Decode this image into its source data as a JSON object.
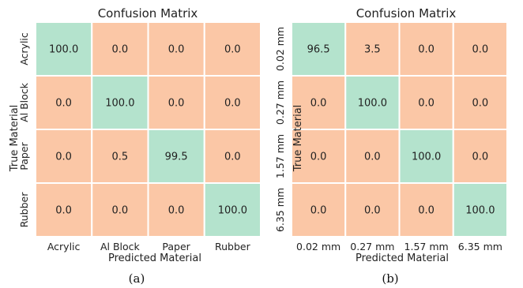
{
  "colors": {
    "diagonal": "#b4e3cd",
    "offdiag": "#fbc7a6",
    "grid": "#ffffff"
  },
  "chart_data": [
    {
      "type": "heatmap",
      "title": "Confusion Matrix",
      "panel_label": "(a)",
      "xlabel": "Predicted Material",
      "ylabel": "True Material",
      "x_categories": [
        "Acrylic",
        "Al Block",
        "Paper",
        "Rubber"
      ],
      "y_categories": [
        "Acrylic",
        "Al Block",
        "Paper",
        "Rubber"
      ],
      "values": [
        [
          100.0,
          0.0,
          0.0,
          0.0
        ],
        [
          0.0,
          100.0,
          0.0,
          0.0
        ],
        [
          0.0,
          0.5,
          99.5,
          0.0
        ],
        [
          0.0,
          0.0,
          0.0,
          100.0
        ]
      ]
    },
    {
      "type": "heatmap",
      "title": "Confusion Matrix",
      "panel_label": "(b)",
      "xlabel": "Predicted Material",
      "ylabel": "True Material",
      "x_categories": [
        "0.02 mm",
        "0.27 mm",
        "1.57 mm",
        "6.35 mm"
      ],
      "y_categories": [
        "0.02 mm",
        "0.27 mm",
        "1.57 mm",
        "6.35 mm"
      ],
      "values": [
        [
          96.5,
          3.5,
          0.0,
          0.0
        ],
        [
          0.0,
          100.0,
          0.0,
          0.0
        ],
        [
          0.0,
          0.0,
          100.0,
          0.0
        ],
        [
          0.0,
          0.0,
          0.0,
          100.0
        ]
      ]
    }
  ]
}
